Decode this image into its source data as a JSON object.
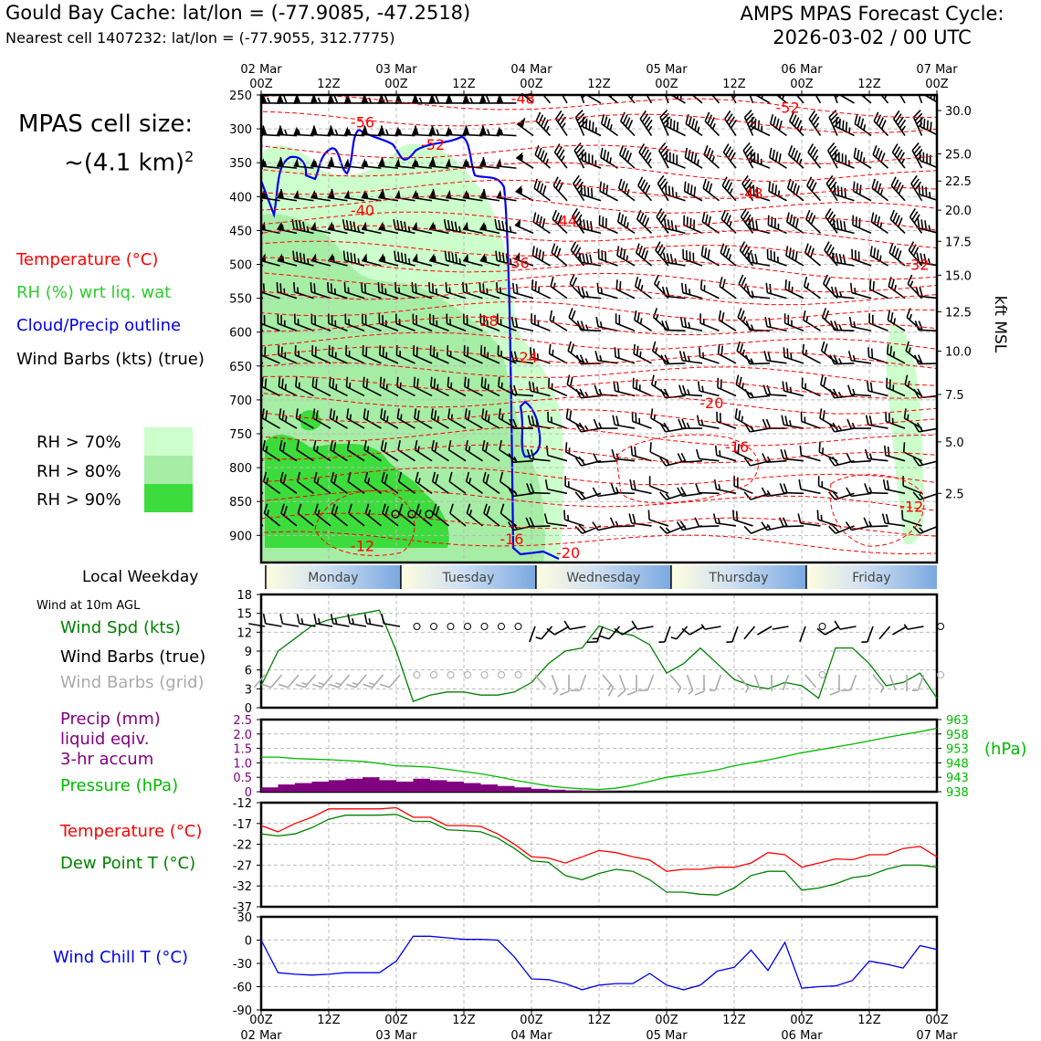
{
  "header": {
    "title": "Gould Bay Cache: lat/lon = (-77.9085, -47.2518)",
    "nearest_cell": "Nearest cell 1407232: lat/lon = (-77.9055, 312.7775)",
    "forecast_line1": "AMPS MPAS Forecast Cycle:",
    "forecast_line2": "2026-03-02 / 00 UTC"
  },
  "cell_size": {
    "line1": "MPAS cell size:",
    "line2": "~(4.1 km)",
    "sup": "2"
  },
  "legend": {
    "temperature": "Temperature (°C)",
    "rh": "RH (%) wrt liq. wat",
    "cloud": "Cloud/Precip outline",
    "wind": "Wind Barbs (kts) (true)",
    "rh70": "RH > 70%",
    "rh80": "RH > 80%",
    "rh90": "RH > 90%"
  },
  "colors": {
    "temperature": "#ff0000",
    "rh": "#2ecc2e",
    "cloud": "#0000ee",
    "rh70": "#ccffcc",
    "rh80": "#a6eda6",
    "rh90": "#3cdc3c",
    "precip": "#800080",
    "pressure": "#00bb00",
    "dewpoint": "#008000",
    "windchill": "#0000ee",
    "windspd": "#008000",
    "barbs_grid": "#aaaaaa"
  },
  "weekday": {
    "label": "Local Weekday",
    "days": [
      "Monday",
      "Tuesday",
      "Wednesday",
      "Thursday",
      "Friday"
    ]
  },
  "panel_labels": {
    "wind10m": "Wind at 10m AGL",
    "windspd": "Wind Spd (kts)",
    "barbs_true": "Wind Barbs (true)",
    "barbs_grid": "Wind Barbs (grid)",
    "precip1": "Precip (mm)",
    "precip2": "liquid eqiv.",
    "precip3": "3-hr accum",
    "pressure": "Pressure (hPa)",
    "pressure_unit": "(hPa)",
    "temp": "Temperature (°C)",
    "dewpoint": "Dew Point T (°C)",
    "windchill": "Wind Chill T (°C)"
  },
  "chart_data": [
    {
      "type": "time-height",
      "name": "cross-section",
      "time_ticks_top": [
        {
          "hours": 0,
          "label": "02 Mar\n00Z"
        },
        {
          "hours": 12,
          "label": "12Z"
        },
        {
          "hours": 24,
          "label": "03 Mar\n00Z"
        },
        {
          "hours": 36,
          "label": "12Z"
        },
        {
          "hours": 48,
          "label": "04 Mar\n00Z"
        },
        {
          "hours": 60,
          "label": "12Z"
        },
        {
          "hours": 72,
          "label": "05 Mar\n00Z"
        },
        {
          "hours": 84,
          "label": "12Z"
        },
        {
          "hours": 96,
          "label": "06 Mar\n00Z"
        },
        {
          "hours": 108,
          "label": "12Z"
        },
        {
          "hours": 120,
          "label": "07 Mar\n00Z"
        }
      ],
      "xlim_hours": [
        0,
        120
      ],
      "pressure_ticks_hpa": [
        250,
        300,
        350,
        400,
        450,
        500,
        550,
        600,
        650,
        700,
        750,
        800,
        850,
        900
      ],
      "ylim_hpa": [
        250,
        940
      ],
      "kft_ticks": [
        {
          "hpa": 273,
          "label": "30.0"
        },
        {
          "hpa": 337,
          "label": "25.0"
        },
        {
          "hpa": 377,
          "label": "22.5"
        },
        {
          "hpa": 420,
          "label": "20.0"
        },
        {
          "hpa": 466,
          "label": "17.5"
        },
        {
          "hpa": 516,
          "label": "15.0"
        },
        {
          "hpa": 570,
          "label": "12.5"
        },
        {
          "hpa": 628,
          "label": "10.0"
        },
        {
          "hpa": 692,
          "label": "7.5"
        },
        {
          "hpa": 762,
          "label": "5.0"
        },
        {
          "hpa": 838,
          "label": "2.5"
        }
      ],
      "right_axis_label": "kft MSL",
      "temperature_contours": [
        {
          "hours": 46.5,
          "hpa": 255,
          "label": "-48"
        },
        {
          "hours": 93.5,
          "hpa": 268,
          "label": "-52"
        },
        {
          "hours": 18,
          "hpa": 290,
          "label": "-56"
        },
        {
          "hours": 30.5,
          "hpa": 323,
          "label": "-52"
        },
        {
          "hours": 87,
          "hpa": 395,
          "label": "-48"
        },
        {
          "hours": 18,
          "hpa": 420,
          "label": "-40"
        },
        {
          "hours": 54,
          "hpa": 435,
          "label": "-44"
        },
        {
          "hours": 45.5,
          "hpa": 497,
          "label": "-36"
        },
        {
          "hours": 116.5,
          "hpa": 500,
          "label": "-32"
        },
        {
          "hours": 40,
          "hpa": 583,
          "label": "-28"
        },
        {
          "hours": 47,
          "hpa": 637,
          "label": "-24"
        },
        {
          "hours": 80,
          "hpa": 704,
          "label": "-20"
        },
        {
          "hours": 84.5,
          "hpa": 769,
          "label": "-16"
        },
        {
          "hours": 115.5,
          "hpa": 857,
          "label": "-12"
        },
        {
          "hours": 18,
          "hpa": 915,
          "label": "-12"
        },
        {
          "hours": 44.5,
          "hpa": 905,
          "label": "-16"
        },
        {
          "hours": 54.5,
          "hpa": 925,
          "label": "-20"
        }
      ],
      "xlabel": "",
      "ylabel": ""
    },
    {
      "type": "line",
      "name": "wind-speed",
      "ylabel": "Wind Spd (kts)",
      "ylim": [
        0,
        18
      ],
      "yticks": [
        0,
        3,
        6,
        9,
        12,
        15,
        18
      ],
      "x_hours": [
        0,
        3,
        6,
        9,
        12,
        15,
        18,
        21,
        24,
        27,
        30,
        33,
        36,
        39,
        42,
        45,
        48,
        51,
        54,
        57,
        60,
        63,
        66,
        69,
        72,
        75,
        78,
        81,
        84,
        87,
        90,
        93,
        96,
        99,
        102,
        105,
        108,
        111,
        114,
        117,
        120
      ],
      "values": [
        3.5,
        9,
        11,
        13,
        14,
        14.5,
        15,
        15.5,
        9,
        1,
        2,
        2.5,
        2.5,
        2,
        2,
        2.5,
        4,
        7,
        9,
        9.5,
        13,
        12,
        11.5,
        10,
        5.5,
        7,
        9.5,
        7,
        4.5,
        3.5,
        3,
        4,
        3.5,
        1.5,
        9.5,
        9.5,
        7,
        3.5,
        4,
        5.5,
        1.5
      ]
    },
    {
      "type": "bar+line",
      "name": "precip-pressure",
      "ylabel_left": "Precip (mm)",
      "ylim_left": [
        0,
        2.5
      ],
      "yticks_left": [
        "0",
        "0.5",
        "1.0",
        "1.5",
        "2.0",
        "2.5"
      ],
      "precip_x_hours": [
        0,
        3,
        6,
        9,
        12,
        15,
        18,
        21,
        24,
        27,
        30,
        33,
        36,
        39,
        42,
        45,
        48,
        51,
        54,
        57,
        60,
        63
      ],
      "precip_values": [
        0.15,
        0.25,
        0.3,
        0.35,
        0.4,
        0.45,
        0.5,
        0.4,
        0.35,
        0.45,
        0.4,
        0.35,
        0.3,
        0.25,
        0.2,
        0.15,
        0.1,
        0.07,
        0.05,
        0.03,
        0.02,
        0.01
      ],
      "ylabel_right": "(hPa)",
      "ylim_right": [
        938,
        963
      ],
      "yticks_right": [
        "963",
        "958",
        "953",
        "948",
        "943",
        "938"
      ],
      "pressure_x_hours": [
        0,
        3,
        6,
        9,
        12,
        15,
        18,
        21,
        24,
        27,
        30,
        33,
        36,
        39,
        42,
        45,
        48,
        51,
        54,
        57,
        60,
        63,
        66,
        69,
        72,
        75,
        78,
        81,
        84,
        87,
        90,
        93,
        96,
        99,
        102,
        105,
        108,
        111,
        114,
        117,
        120
      ],
      "pressure_values": [
        950,
        950,
        949.5,
        949.3,
        949.1,
        948.8,
        948.5,
        947.8,
        947,
        946.8,
        946.5,
        945.8,
        945,
        944.2,
        943.2,
        942,
        941,
        940,
        939.4,
        939,
        938.8,
        939.2,
        940.2,
        941.6,
        943,
        943.8,
        944.6,
        945.6,
        947,
        948,
        949,
        950.2,
        951.5,
        952.5,
        953.5,
        954.5,
        955.6,
        956.8,
        957.8,
        958.8,
        960
      ]
    },
    {
      "type": "line",
      "name": "temperature-dewpoint",
      "ylim": [
        -37,
        -12
      ],
      "yticks": [
        -12,
        -17,
        -22,
        -27,
        -32,
        -37
      ],
      "x_hours": [
        0,
        3,
        6,
        9,
        12,
        15,
        18,
        21,
        24,
        27,
        30,
        33,
        36,
        39,
        42,
        45,
        48,
        51,
        54,
        57,
        60,
        63,
        66,
        69,
        72,
        75,
        78,
        81,
        84,
        87,
        90,
        93,
        96,
        99,
        102,
        105,
        108,
        111,
        114,
        117,
        120
      ],
      "series": [
        {
          "name": "Temperature (°C)",
          "values": [
            -17.5,
            -19,
            -17,
            -15.5,
            -13.5,
            -13.5,
            -13.5,
            -13.5,
            -13.2,
            -15.5,
            -15.5,
            -17.5,
            -17.5,
            -17.7,
            -19.5,
            -22,
            -25,
            -25.3,
            -26.5,
            -25,
            -23.5,
            -24,
            -25,
            -25.8,
            -28.5,
            -28,
            -28,
            -27.5,
            -27.5,
            -26.5,
            -24,
            -24.5,
            -27.5,
            -26.5,
            -25.5,
            -25.7,
            -24.5,
            -24.5,
            -23,
            -22.5,
            -25
          ]
        },
        {
          "name": "Dew Point T (°C)",
          "values": [
            -19.5,
            -20,
            -19.5,
            -18,
            -16,
            -15,
            -15,
            -15,
            -14.8,
            -16.5,
            -16.5,
            -18.5,
            -18.7,
            -19,
            -20.5,
            -23,
            -26,
            -26.3,
            -29.5,
            -30.5,
            -29,
            -28,
            -28.5,
            -30.5,
            -33.5,
            -33.5,
            -34,
            -34.2,
            -32.5,
            -29.5,
            -28.5,
            -28.5,
            -33,
            -32.5,
            -31.5,
            -30,
            -29.5,
            -28,
            -27,
            -27,
            -27.5
          ]
        }
      ]
    },
    {
      "type": "line",
      "name": "wind-chill",
      "ylabel": "Wind Chill T (°C)",
      "ylim": [
        -90,
        30
      ],
      "yticks": [
        30,
        0,
        -30,
        -60,
        -90
      ],
      "x_hours": [
        0,
        3,
        6,
        9,
        12,
        15,
        18,
        21,
        24,
        27,
        30,
        33,
        36,
        39,
        42,
        45,
        48,
        51,
        54,
        57,
        60,
        63,
        66,
        69,
        72,
        75,
        78,
        81,
        84,
        87,
        90,
        93,
        96,
        99,
        102,
        105,
        108,
        111,
        114,
        117,
        120
      ],
      "values": [
        0,
        -42,
        -44,
        -45,
        -44,
        -42,
        -42,
        -42,
        -27,
        5,
        5,
        3,
        1,
        1,
        0,
        -22,
        -50,
        -51,
        -56,
        -64,
        -58,
        -56,
        -56,
        -43,
        -58,
        -64,
        -58,
        -40,
        -35,
        -13,
        -39,
        -3,
        -62,
        -60,
        -59,
        -52,
        -27,
        -31,
        -36,
        -7,
        -12
      ],
      "xlabel_ticks": [
        "00Z\n02 Mar",
        "12Z",
        "00Z\n03 Mar",
        "12Z",
        "00Z\n04 Mar",
        "12Z",
        "00Z\n05 Mar",
        "12Z",
        "00Z\n06 Mar",
        "12Z",
        "00Z\n07 Mar"
      ]
    }
  ]
}
